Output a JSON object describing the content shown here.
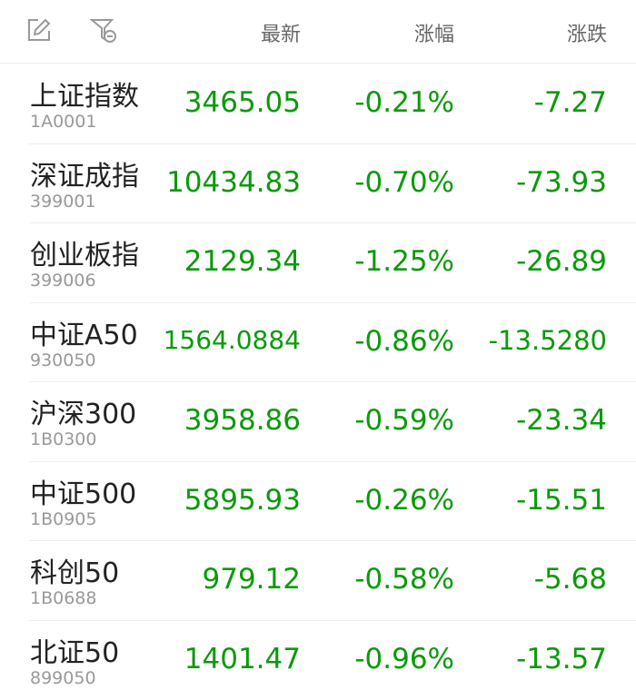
{
  "header": {
    "columns": [
      "最新",
      "涨幅",
      "涨跌"
    ],
    "icons": [
      "edit-icon",
      "filter-remove-icon"
    ]
  },
  "colors": {
    "down": "#0a9a0a"
  },
  "rows": [
    {
      "name": "上证指数",
      "code": "1A0001",
      "price": "3465.05",
      "pct": "-0.21%",
      "change": "-7.27"
    },
    {
      "name": "深证成指",
      "code": "399001",
      "price": "10434.83",
      "pct": "-0.70%",
      "change": "-73.93"
    },
    {
      "name": "创业板指",
      "code": "399006",
      "price": "2129.34",
      "pct": "-1.25%",
      "change": "-26.89"
    },
    {
      "name": "中证A50",
      "code": "930050",
      "price": "1564.0884",
      "pct": "-0.86%",
      "change": "-13.5280"
    },
    {
      "name": "沪深300",
      "code": "1B0300",
      "price": "3958.86",
      "pct": "-0.59%",
      "change": "-23.34"
    },
    {
      "name": "中证500",
      "code": "1B0905",
      "price": "5895.93",
      "pct": "-0.26%",
      "change": "-15.51"
    },
    {
      "name": "科创50",
      "code": "1B0688",
      "price": "979.12",
      "pct": "-0.58%",
      "change": "-5.68"
    },
    {
      "name": "北证50",
      "code": "899050",
      "price": "1401.47",
      "pct": "-0.96%",
      "change": "-13.57"
    }
  ]
}
